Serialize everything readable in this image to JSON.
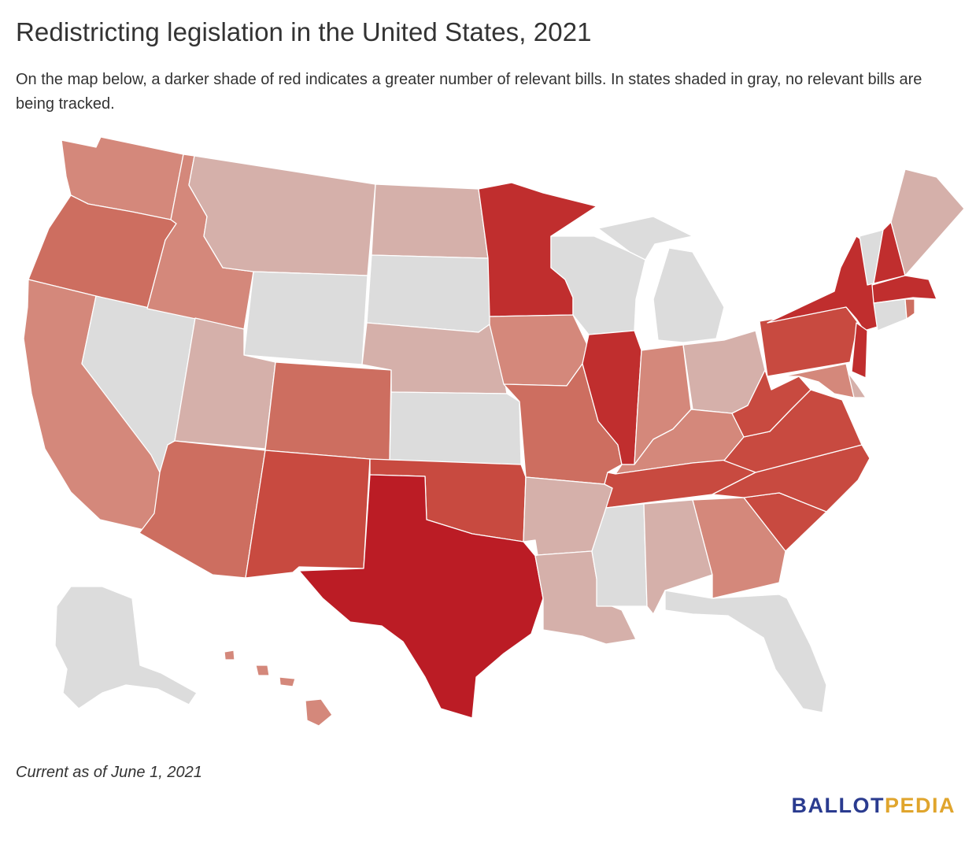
{
  "header": {
    "title": "Redistricting legislation in the United States, 2021",
    "subtitle": "On the map below, a darker shade of red indicates a greater number of relevant bills. In states shaded in gray, no relevant bills are being tracked."
  },
  "footer": {
    "note": "Current as of June 1, 2021",
    "logo_part1": "BALLOT",
    "logo_part2": "PEDIA"
  },
  "colors": {
    "level_0": "#dcdcdc",
    "level_1": "#d5b0aa",
    "level_2": "#d4887b",
    "level_3": "#cd6e60",
    "level_4": "#c84a40",
    "level_5": "#c02e2e",
    "level_6": "#bb1c25",
    "logo_primary": "#2a3b8f",
    "logo_accent": "#e0a52d"
  },
  "map_data": {
    "type": "choropleth",
    "region": "United States",
    "shading": "darker red = more relevant bills; gray = none tracked",
    "states": {
      "WA": 2,
      "OR": 3,
      "CA": 2,
      "NV": 0,
      "ID": 2,
      "MT": 1,
      "WY": 0,
      "UT": 1,
      "AZ": 3,
      "CO": 3,
      "NM": 4,
      "ND": 1,
      "SD": 0,
      "NE": 1,
      "KS": 0,
      "OK": 4,
      "TX": 6,
      "MN": 5,
      "IA": 2,
      "MO": 3,
      "AR": 1,
      "LA": 1,
      "WI": 0,
      "IL": 5,
      "MI": 0,
      "IN": 2,
      "OH": 1,
      "KY": 2,
      "TN": 4,
      "MS": 0,
      "AL": 1,
      "GA": 2,
      "FL": 0,
      "SC": 4,
      "NC": 4,
      "VA": 4,
      "WV": 4,
      "PA": 4,
      "NY": 5,
      "NJ": 5,
      "DE": 1,
      "MD": 2,
      "CT": 0,
      "RI": 3,
      "MA": 5,
      "VT": 0,
      "NH": 5,
      "ME": 1,
      "AK": 0,
      "HI": 2
    }
  }
}
